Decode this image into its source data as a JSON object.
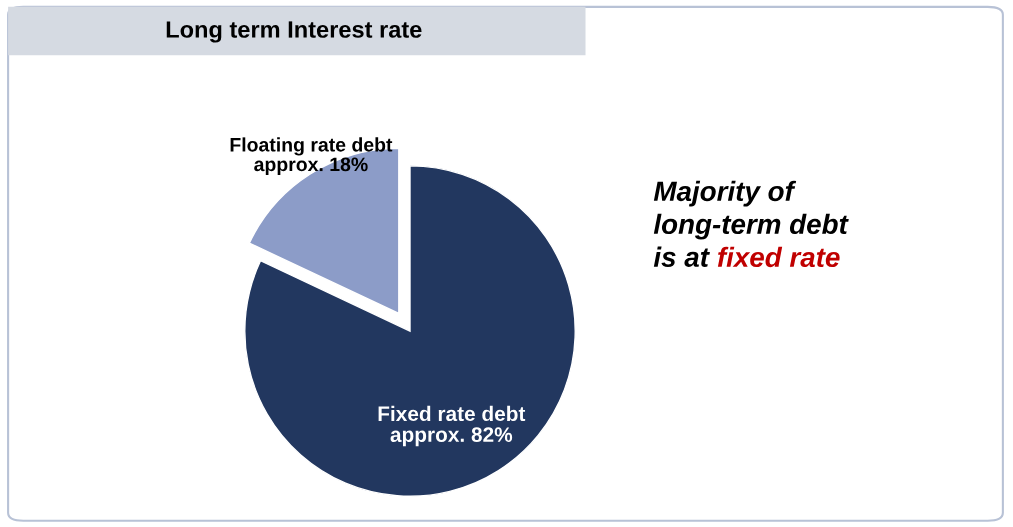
{
  "chart_data": {
    "type": "pie",
    "title": "Long term Interest rate",
    "categories": [
      "Fixed rate debt",
      "Floating rate debt"
    ],
    "values": [
      82,
      18
    ],
    "value_labels": [
      "approx. 82%",
      "approx. 18%"
    ],
    "colors": [
      "#22375f",
      "#8c9cc8"
    ],
    "annotations": [
      "Majority of\nlong-term debt\nis at",
      "fixed rate"
    ]
  }
}
